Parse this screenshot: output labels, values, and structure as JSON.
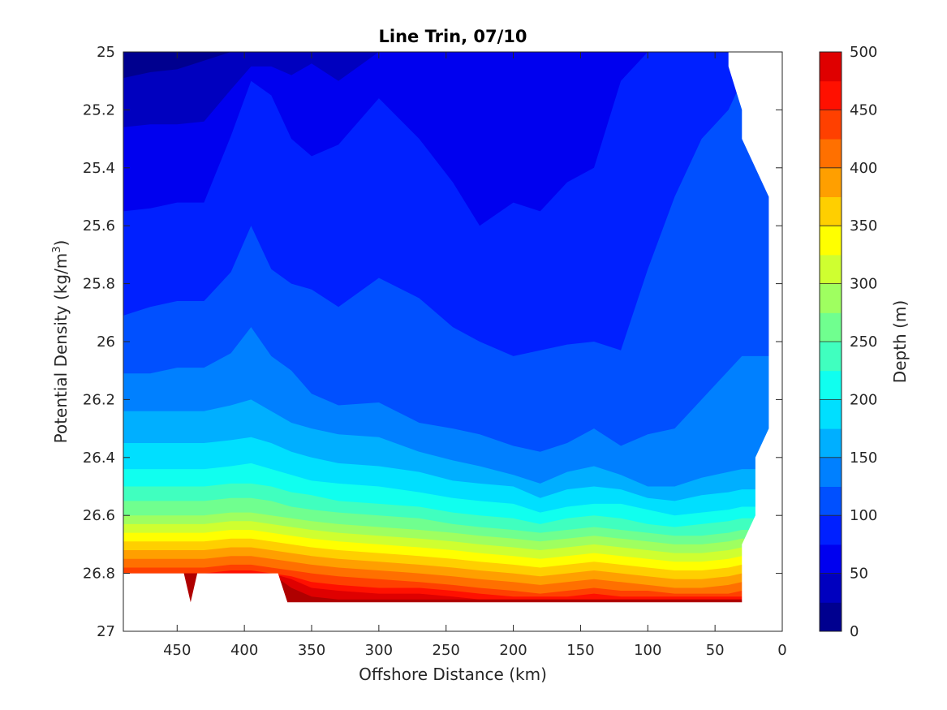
{
  "chart_data": {
    "type": "contourf",
    "title": "Line Trin, 07/10",
    "xlabel": "Offshore Distance (km)",
    "ylabel": "Potential Density (kg/m³)",
    "ylabel_main": "Potential Density (kg/m",
    "ylabel_sup": "3",
    "ylabel_end": ")",
    "colorbar_label": "Depth (m)",
    "x_reversed": true,
    "y_reversed": true,
    "xlim": [
      490,
      0
    ],
    "ylim": [
      25,
      27
    ],
    "xticks": [
      450,
      400,
      350,
      300,
      250,
      200,
      150,
      100,
      50,
      0
    ],
    "yticks": [
      25,
      25.2,
      25.4,
      25.6,
      25.8,
      26,
      26.2,
      26.4,
      26.6,
      26.8,
      27
    ],
    "ytick_labels": [
      "25",
      "25.2",
      "25.4",
      "25.6",
      "25.8",
      "26",
      "26.2",
      "26.4",
      "26.6",
      "26.8",
      "27"
    ],
    "clim": [
      0,
      500
    ],
    "colorbar_ticks": [
      0,
      50,
      100,
      150,
      200,
      250,
      300,
      350,
      400,
      450,
      500
    ],
    "level_step": 25,
    "level_colors": [
      "#00008f",
      "#0000bf",
      "#0000ef",
      "#0020ff",
      "#0050ff",
      "#0080ff",
      "#00afff",
      "#00dfff",
      "#10ffef",
      "#40ffbf",
      "#70ff8f",
      "#9fff60",
      "#cfff30",
      "#ffff00",
      "#ffcf00",
      "#ff9f00",
      "#ff7000",
      "#ff4000",
      "#ff1000",
      "#df0000",
      "#af0000"
    ],
    "x": [
      490,
      470,
      450,
      430,
      410,
      395,
      380,
      365,
      350,
      330,
      300,
      270,
      245,
      225,
      200,
      180,
      160,
      140,
      120,
      100,
      80,
      60,
      40,
      30,
      20,
      10
    ],
    "isopycnals": [
      {
        "depth": 25,
        "sigma": [
          25.09,
          25.07,
          25.06,
          25.03,
          25.0,
          25.0,
          25.0,
          25.0,
          25.0,
          25.0,
          25.0,
          25.0,
          25.0,
          25.0,
          25.0,
          25.0,
          25.0,
          25.0,
          25.0,
          25.0,
          25.0,
          25.0,
          25.0,
          25.0,
          25.0,
          25.0
        ]
      },
      {
        "depth": 50,
        "sigma": [
          25.26,
          25.25,
          25.25,
          25.24,
          25.13,
          25.05,
          25.05,
          25.08,
          25.04,
          25.1,
          25.0,
          25.0,
          25.0,
          25.0,
          25.0,
          25.0,
          25.0,
          25.0,
          25.0,
          25.0,
          25.0,
          25.0,
          25.0,
          25.0,
          25.0,
          25.0
        ]
      },
      {
        "depth": 75,
        "sigma": [
          25.55,
          25.54,
          25.52,
          25.52,
          25.29,
          25.1,
          25.15,
          25.3,
          25.36,
          25.32,
          25.16,
          25.3,
          25.45,
          25.6,
          25.52,
          25.55,
          25.45,
          25.4,
          25.1,
          25.0,
          25.0,
          25.0,
          25.0,
          25.0,
          25.0,
          25.0
        ]
      },
      {
        "depth": 100,
        "sigma": [
          25.91,
          25.88,
          25.86,
          25.86,
          25.76,
          25.6,
          25.75,
          25.8,
          25.82,
          25.88,
          25.78,
          25.85,
          25.95,
          26.0,
          26.05,
          26.03,
          26.01,
          26.0,
          26.03,
          25.75,
          25.5,
          25.3,
          25.2,
          25.1,
          25.0,
          25.0
        ]
      },
      {
        "depth": 125,
        "sigma": [
          26.11,
          26.11,
          26.09,
          26.09,
          26.04,
          25.95,
          26.05,
          26.1,
          26.18,
          26.22,
          26.21,
          26.28,
          26.3,
          26.32,
          26.36,
          26.38,
          26.35,
          26.3,
          26.36,
          26.32,
          26.3,
          26.2,
          26.1,
          26.05,
          26.05,
          26.05
        ]
      },
      {
        "depth": 150,
        "sigma": [
          26.24,
          26.24,
          26.24,
          26.24,
          26.22,
          26.2,
          26.24,
          26.28,
          26.3,
          26.32,
          26.33,
          26.38,
          26.41,
          26.43,
          26.46,
          26.49,
          26.45,
          26.43,
          26.46,
          26.5,
          26.5,
          26.47,
          26.45,
          26.44,
          26.44,
          26.44
        ]
      },
      {
        "depth": 175,
        "sigma": [
          26.35,
          26.35,
          26.35,
          26.35,
          26.34,
          26.33,
          26.35,
          26.38,
          26.4,
          26.42,
          26.43,
          26.45,
          26.48,
          26.49,
          26.5,
          26.54,
          26.51,
          26.5,
          26.51,
          26.54,
          26.55,
          26.53,
          26.52,
          26.51,
          26.51,
          26.51
        ]
      },
      {
        "depth": 200,
        "sigma": [
          26.44,
          26.44,
          26.44,
          26.44,
          26.43,
          26.42,
          26.44,
          26.46,
          26.48,
          26.49,
          26.5,
          26.52,
          26.54,
          26.55,
          26.56,
          26.59,
          26.57,
          26.56,
          26.56,
          26.58,
          26.6,
          26.59,
          26.58,
          26.57,
          26.57,
          26.57
        ]
      },
      {
        "depth": 225,
        "sigma": [
          26.5,
          26.5,
          26.5,
          26.5,
          26.49,
          26.49,
          26.5,
          26.52,
          26.53,
          26.55,
          26.56,
          26.57,
          26.59,
          26.6,
          26.61,
          26.63,
          26.61,
          26.6,
          26.61,
          26.63,
          26.64,
          26.63,
          26.62,
          26.61,
          26.61,
          26.61
        ]
      },
      {
        "depth": 250,
        "sigma": [
          26.55,
          26.55,
          26.55,
          26.55,
          26.54,
          26.54,
          26.55,
          26.57,
          26.58,
          26.59,
          26.6,
          26.61,
          26.63,
          26.64,
          26.65,
          26.66,
          26.65,
          26.64,
          26.65,
          26.66,
          26.67,
          26.67,
          26.66,
          26.65,
          26.65,
          26.65
        ]
      },
      {
        "depth": 275,
        "sigma": [
          26.6,
          26.6,
          26.6,
          26.6,
          26.59,
          26.59,
          26.6,
          26.61,
          26.62,
          26.63,
          26.64,
          26.65,
          26.66,
          26.67,
          26.68,
          26.69,
          26.68,
          26.67,
          26.68,
          26.69,
          26.7,
          26.7,
          26.69,
          26.68,
          26.68,
          26.68
        ]
      },
      {
        "depth": 300,
        "sigma": [
          26.63,
          26.63,
          26.63,
          26.63,
          26.62,
          26.62,
          26.63,
          26.64,
          26.65,
          26.66,
          26.67,
          26.68,
          26.69,
          26.7,
          26.71,
          26.72,
          26.71,
          26.7,
          26.71,
          26.72,
          26.73,
          26.73,
          26.72,
          26.71,
          26.71,
          26.71
        ]
      },
      {
        "depth": 325,
        "sigma": [
          26.66,
          26.66,
          26.66,
          26.66,
          26.65,
          26.65,
          26.66,
          26.67,
          26.68,
          26.69,
          26.7,
          26.71,
          26.72,
          26.73,
          26.74,
          26.75,
          26.74,
          26.73,
          26.74,
          26.75,
          26.76,
          26.76,
          26.75,
          26.74,
          26.74,
          26.74
        ]
      },
      {
        "depth": 350,
        "sigma": [
          26.69,
          26.69,
          26.69,
          26.69,
          26.68,
          26.68,
          26.69,
          26.7,
          26.71,
          26.72,
          26.73,
          26.74,
          26.75,
          26.76,
          26.77,
          26.78,
          26.77,
          26.76,
          26.77,
          26.78,
          26.79,
          26.79,
          26.78,
          26.77,
          26.77,
          26.77
        ]
      },
      {
        "depth": 375,
        "sigma": [
          26.72,
          26.72,
          26.72,
          26.72,
          26.71,
          26.71,
          26.72,
          26.73,
          26.74,
          26.75,
          26.76,
          26.77,
          26.78,
          26.79,
          26.8,
          26.81,
          26.8,
          26.79,
          26.8,
          26.81,
          26.82,
          26.82,
          26.81,
          26.8,
          26.8,
          26.8
        ]
      },
      {
        "depth": 400,
        "sigma": [
          26.75,
          26.75,
          26.75,
          26.75,
          26.74,
          26.74,
          26.75,
          26.76,
          26.77,
          26.78,
          26.79,
          26.8,
          26.81,
          26.82,
          26.83,
          26.84,
          26.83,
          26.82,
          26.83,
          26.84,
          26.85,
          26.85,
          26.84,
          26.83,
          26.83,
          26.83
        ]
      },
      {
        "depth": 425,
        "sigma": [
          26.78,
          26.78,
          26.78,
          26.78,
          26.77,
          26.77,
          26.78,
          26.79,
          26.8,
          26.81,
          26.82,
          26.83,
          26.84,
          26.85,
          26.86,
          26.87,
          26.86,
          26.85,
          26.86,
          26.86,
          26.87,
          26.87,
          26.87,
          26.86,
          26.86,
          26.86
        ]
      },
      {
        "depth": 450,
        "sigma": [
          26.8,
          26.8,
          26.8,
          26.8,
          26.79,
          26.79,
          26.8,
          26.81,
          26.83,
          26.84,
          26.85,
          26.85,
          26.86,
          26.87,
          26.88,
          26.88,
          26.88,
          26.87,
          26.88,
          26.88,
          26.88,
          26.88,
          26.88,
          26.88,
          26.88,
          26.88
        ]
      },
      {
        "depth": 475,
        "sigma": [
          26.8,
          26.8,
          26.8,
          26.8,
          26.8,
          26.8,
          26.8,
          26.82,
          26.85,
          26.86,
          26.87,
          26.87,
          26.88,
          26.89,
          26.89,
          26.89,
          26.89,
          26.89,
          26.89,
          26.89,
          26.89,
          26.89,
          26.89,
          26.89,
          26.89,
          26.89
        ]
      },
      {
        "depth": 500,
        "sigma": [
          26.8,
          26.8,
          26.8,
          26.8,
          26.8,
          26.8,
          26.8,
          26.85,
          26.88,
          26.89,
          26.89,
          26.89,
          26.89,
          26.89,
          26.89,
          26.89,
          26.89,
          26.89,
          26.89,
          26.89,
          26.89,
          26.89,
          26.89,
          26.89,
          26.89,
          26.89
        ]
      }
    ],
    "data_boundary": {
      "top_mask": [
        [
          40,
          25.0
        ],
        [
          40,
          25.05
        ],
        [
          30,
          25.2
        ],
        [
          30,
          25.3
        ],
        [
          10,
          25.5
        ],
        [
          10,
          26.3
        ],
        [
          20,
          26.4
        ],
        [
          20,
          26.6
        ],
        [
          30,
          26.7
        ],
        [
          30,
          26.9
        ]
      ],
      "bottom_mask": [
        [
          490,
          26.8
        ],
        [
          445,
          26.8
        ],
        [
          440,
          26.9
        ],
        [
          435,
          26.8
        ],
        [
          375,
          26.8
        ],
        [
          368,
          26.9
        ],
        [
          30,
          26.9
        ]
      ]
    }
  }
}
